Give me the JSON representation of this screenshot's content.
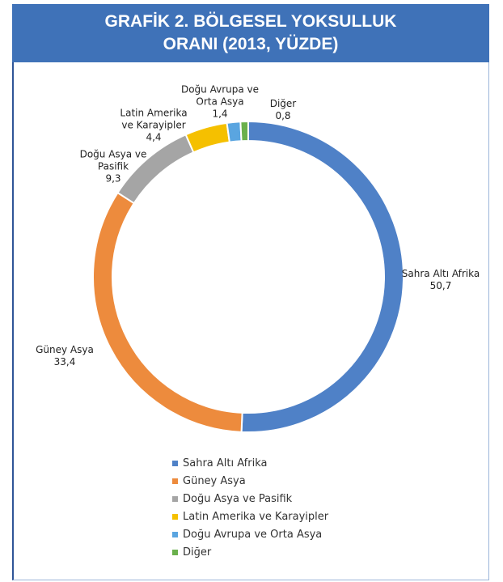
{
  "chart_data": {
    "type": "pie",
    "title": "GRAFİK 2. BÖLGESEL YOKSULLUK ORANI (2013, YÜZDE)",
    "categories": [
      "Sahra Altı Afrika",
      "Güney Asya",
      "Doğu Asya ve Pasifik",
      "Latin Amerika ve Karayipler",
      "Doğu Avrupa ve Orta Asya",
      "Diğer"
    ],
    "values": [
      50.7,
      33.4,
      9.3,
      4.4,
      1.4,
      0.8
    ],
    "value_labels": [
      "50,7",
      "33,4",
      "9,3",
      "4,4",
      "1,4",
      "0,8"
    ],
    "colors": [
      "#4f81c7",
      "#ed8b3d",
      "#a5a5a5",
      "#f5c000",
      "#5aa5e0",
      "#6ab04c"
    ],
    "legend": "bottom"
  }
}
